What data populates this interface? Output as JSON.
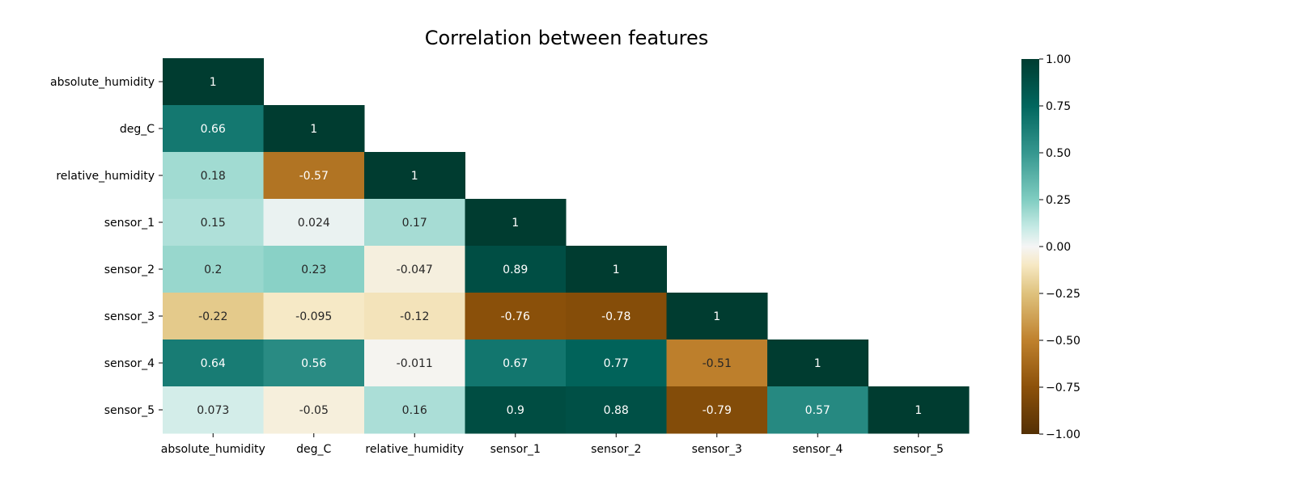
{
  "chart_data": {
    "type": "heatmap",
    "title": "Correlation between features",
    "xlabel": "",
    "ylabel": "",
    "rows": [
      "absolute_humidity",
      "deg_C",
      "relative_humidity",
      "sensor_1",
      "sensor_2",
      "sensor_3",
      "sensor_4",
      "sensor_5"
    ],
    "columns": [
      "absolute_humidity",
      "deg_C",
      "relative_humidity",
      "sensor_1",
      "sensor_2",
      "sensor_3",
      "sensor_4",
      "sensor_5"
    ],
    "values": [
      [
        1
      ],
      [
        0.66,
        1
      ],
      [
        0.18,
        -0.57,
        1
      ],
      [
        0.15,
        0.024,
        0.17,
        1
      ],
      [
        0.2,
        0.23,
        -0.047,
        0.89,
        1
      ],
      [
        -0.22,
        -0.095,
        -0.12,
        -0.76,
        -0.78,
        1
      ],
      [
        0.64,
        0.56,
        -0.011,
        0.67,
        0.77,
        -0.51,
        1
      ],
      [
        0.073,
        -0.05,
        0.16,
        0.9,
        0.88,
        -0.79,
        0.57,
        1
      ]
    ],
    "mask": "upper triangle hidden",
    "colormap": "BrBG",
    "colorbar": {
      "range": [
        -1,
        1
      ],
      "ticks": [
        "1.00",
        "0.75",
        "0.50",
        "0.25",
        "0.00",
        "−0.25",
        "−0.50",
        "−0.75",
        "−1.00"
      ],
      "tick_values": [
        1,
        0.75,
        0.5,
        0.25,
        0,
        -0.25,
        -0.5,
        -0.75,
        -1
      ]
    }
  }
}
